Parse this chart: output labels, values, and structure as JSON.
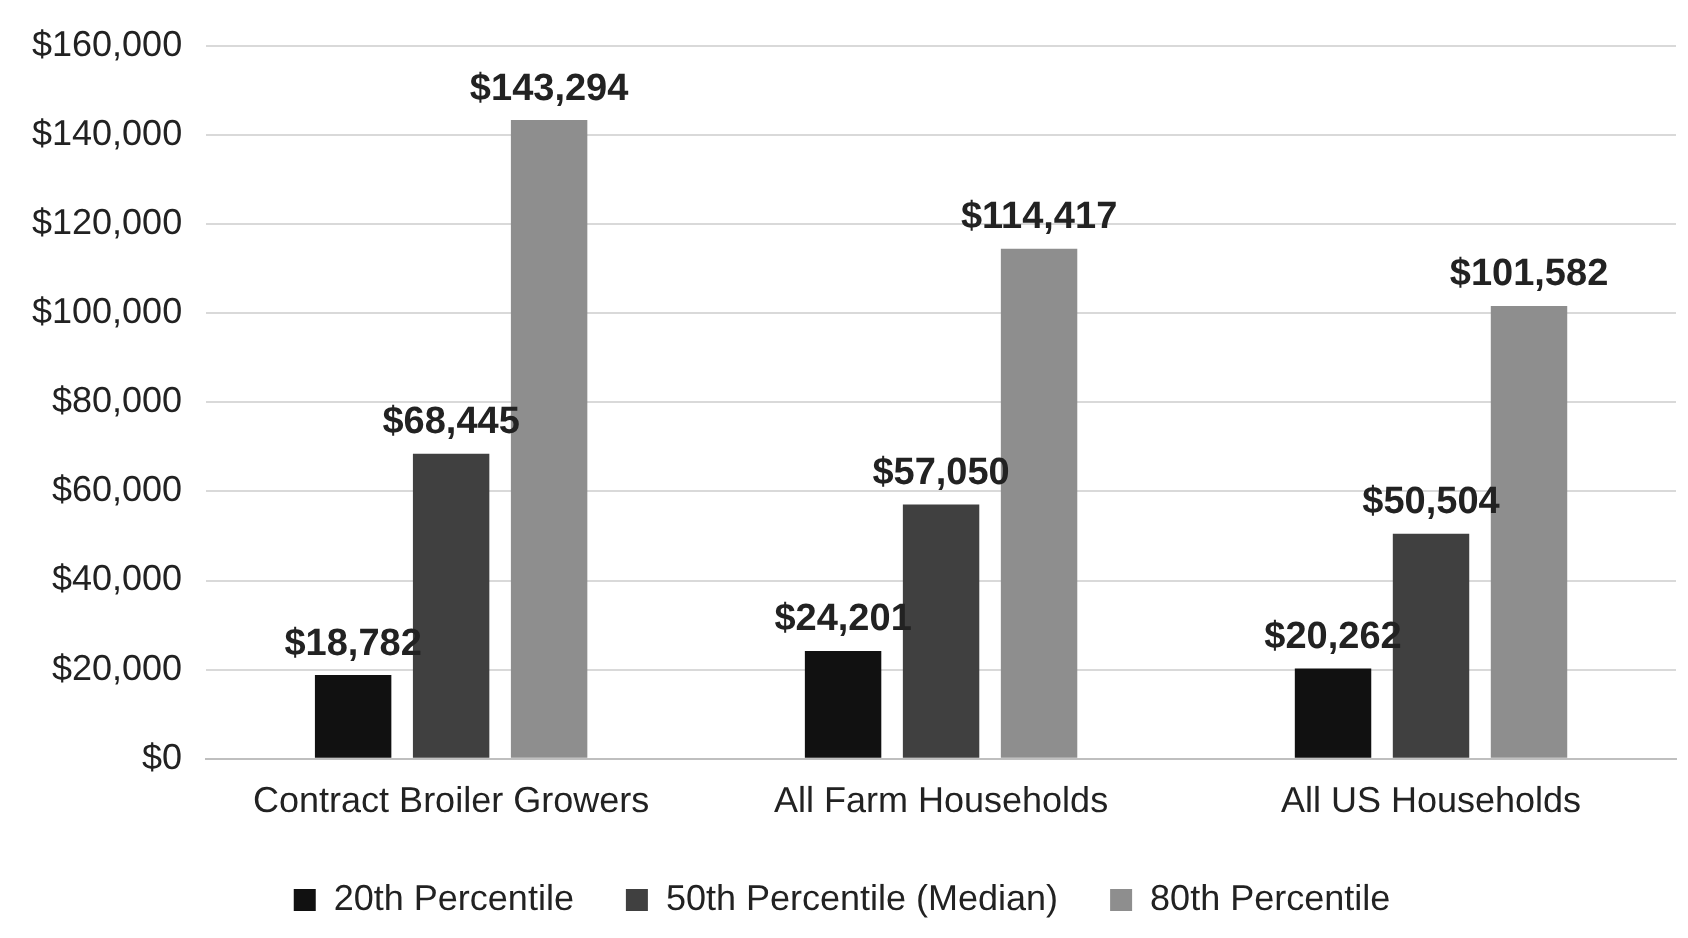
{
  "chart_data": {
    "type": "bar",
    "categories": [
      "Contract Broiler Growers",
      "All Farm Households",
      "All US Households"
    ],
    "series": [
      {
        "name": "20th Percentile",
        "color": "#111111",
        "values": [
          18782,
          24201,
          20262
        ],
        "value_labels": [
          "$18,782",
          "$24,201",
          "$20,262"
        ]
      },
      {
        "name": "50th Percentile (Median)",
        "color": "#404040",
        "values": [
          68445,
          57050,
          50504
        ],
        "value_labels": [
          "$68,445",
          "$57,050",
          "$50,504"
        ]
      },
      {
        "name": "80th Percentile",
        "color": "#8e8e8e",
        "values": [
          143294,
          114417,
          101582
        ],
        "value_labels": [
          "$143,294",
          "$114,417",
          "$101,582"
        ]
      }
    ],
    "ylim": [
      0,
      160000
    ],
    "yticks": [
      {
        "value": 0,
        "label": "$0"
      },
      {
        "value": 20000,
        "label": "$20,000"
      },
      {
        "value": 40000,
        "label": "$40,000"
      },
      {
        "value": 60000,
        "label": "$60,000"
      },
      {
        "value": 80000,
        "label": "$80,000"
      },
      {
        "value": 100000,
        "label": "$100,000"
      },
      {
        "value": 120000,
        "label": "$120,000"
      },
      {
        "value": 140000,
        "label": "$140,000"
      },
      {
        "value": 160000,
        "label": "$160,000"
      }
    ],
    "grid": "y",
    "legend": "bottom"
  }
}
